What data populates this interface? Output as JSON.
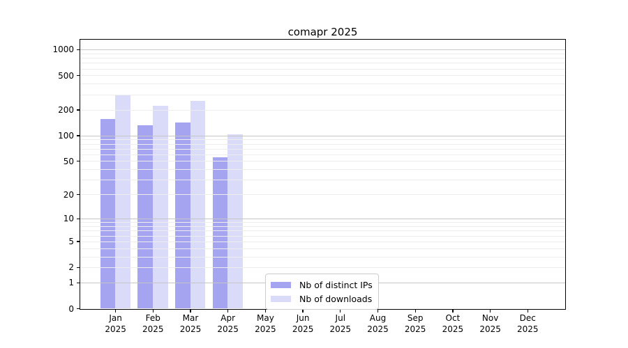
{
  "title": "comapr 2025",
  "chart_data": {
    "type": "bar",
    "title": "comapr 2025",
    "xlabel": "",
    "ylabel": "",
    "y_scale": "log1p",
    "ylim": [
      0,
      1337
    ],
    "grid": "on",
    "legend_position": "bottom-center",
    "year_label": "2025",
    "categories": [
      "Jan",
      "Feb",
      "Mar",
      "Apr",
      "May",
      "Jun",
      "Jul",
      "Aug",
      "Sep",
      "Oct",
      "Nov",
      "Dec"
    ],
    "yticks": [
      0,
      1,
      2,
      5,
      10,
      20,
      50,
      100,
      200,
      500,
      1000
    ],
    "series": [
      {
        "name": "Nb of distinct IPs",
        "color": "#a4a4f1",
        "values": [
          155,
          132,
          141,
          55,
          null,
          null,
          null,
          null,
          null,
          null,
          null,
          null
        ]
      },
      {
        "name": "Nb of downloads",
        "color": "#dadaf9",
        "values": [
          293,
          220,
          252,
          104,
          null,
          null,
          null,
          null,
          null,
          null,
          null,
          null
        ]
      }
    ]
  }
}
